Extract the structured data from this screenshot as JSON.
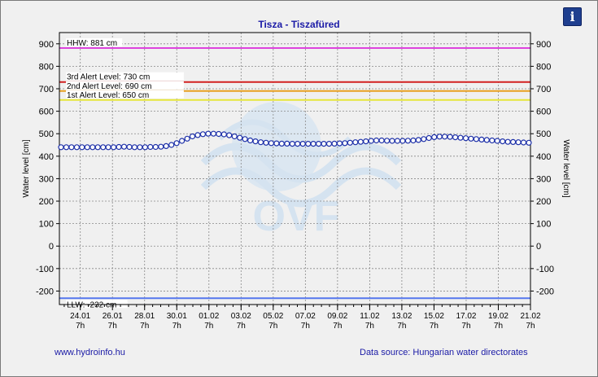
{
  "title": "Tisza - Tiszafüred",
  "info_icon": "info-icon",
  "footer": {
    "website": "www.hydroinfo.hu",
    "source": "Data source: Hungarian water directorates"
  },
  "colors": {
    "hhw": "#dd44dd",
    "alert3": "#d32020",
    "alert2": "#e8a020",
    "alert1": "#e6e63a",
    "llw": "#5577ee",
    "series": "#1c2fa8",
    "text_blue": "#1a1aa6"
  },
  "watermark": "OVF",
  "chart_data": {
    "type": "line",
    "title": "Tisza - Tiszafüred",
    "ylabel_left": "Water level [cm]",
    "ylabel_right": "Water level [cm]",
    "ylim": [
      -260,
      950
    ],
    "yticks": [
      -200,
      -100,
      0,
      100,
      200,
      300,
      400,
      500,
      600,
      700,
      800,
      900
    ],
    "grid": true,
    "xtick_labels": [
      "24.01",
      "26.01",
      "28.01",
      "30.01",
      "01.02",
      "03.02",
      "05.02",
      "07.02",
      "09.02",
      "11.02",
      "13.02",
      "15.02",
      "17.02",
      "19.02",
      "21.02"
    ],
    "xtick_sublabel": "7h",
    "reference_lines": [
      {
        "label": "HHW: 881 cm",
        "value": 881
      },
      {
        "label": "3rd Alert Level: 730 cm",
        "value": 730
      },
      {
        "label": "2nd Alert Level: 690 cm",
        "value": 690
      },
      {
        "label": "1st Alert Level: 650 cm",
        "value": 650
      },
      {
        "label": "LLW: -232 cm",
        "value": -232
      }
    ],
    "series": [
      {
        "values": [
          440,
          440,
          440,
          440,
          440,
          440,
          440,
          440,
          440,
          440,
          440,
          441,
          442,
          441,
          440,
          440,
          440,
          441,
          441,
          442,
          445,
          450,
          458,
          468,
          478,
          488,
          494,
          498,
          500,
          500,
          499,
          497,
          493,
          488,
          482,
          476,
          470,
          466,
          462,
          460,
          458,
          457,
          456,
          456,
          455,
          455,
          455,
          455,
          455,
          455,
          455,
          455,
          456,
          457,
          458,
          460,
          462,
          464,
          466,
          468,
          470,
          470,
          469,
          468,
          468,
          468,
          469,
          470,
          472,
          476,
          481,
          485,
          487,
          487,
          486,
          484,
          482,
          480,
          478,
          476,
          474,
          472,
          470,
          468,
          466,
          464,
          463,
          462,
          461,
          460
        ]
      }
    ]
  }
}
